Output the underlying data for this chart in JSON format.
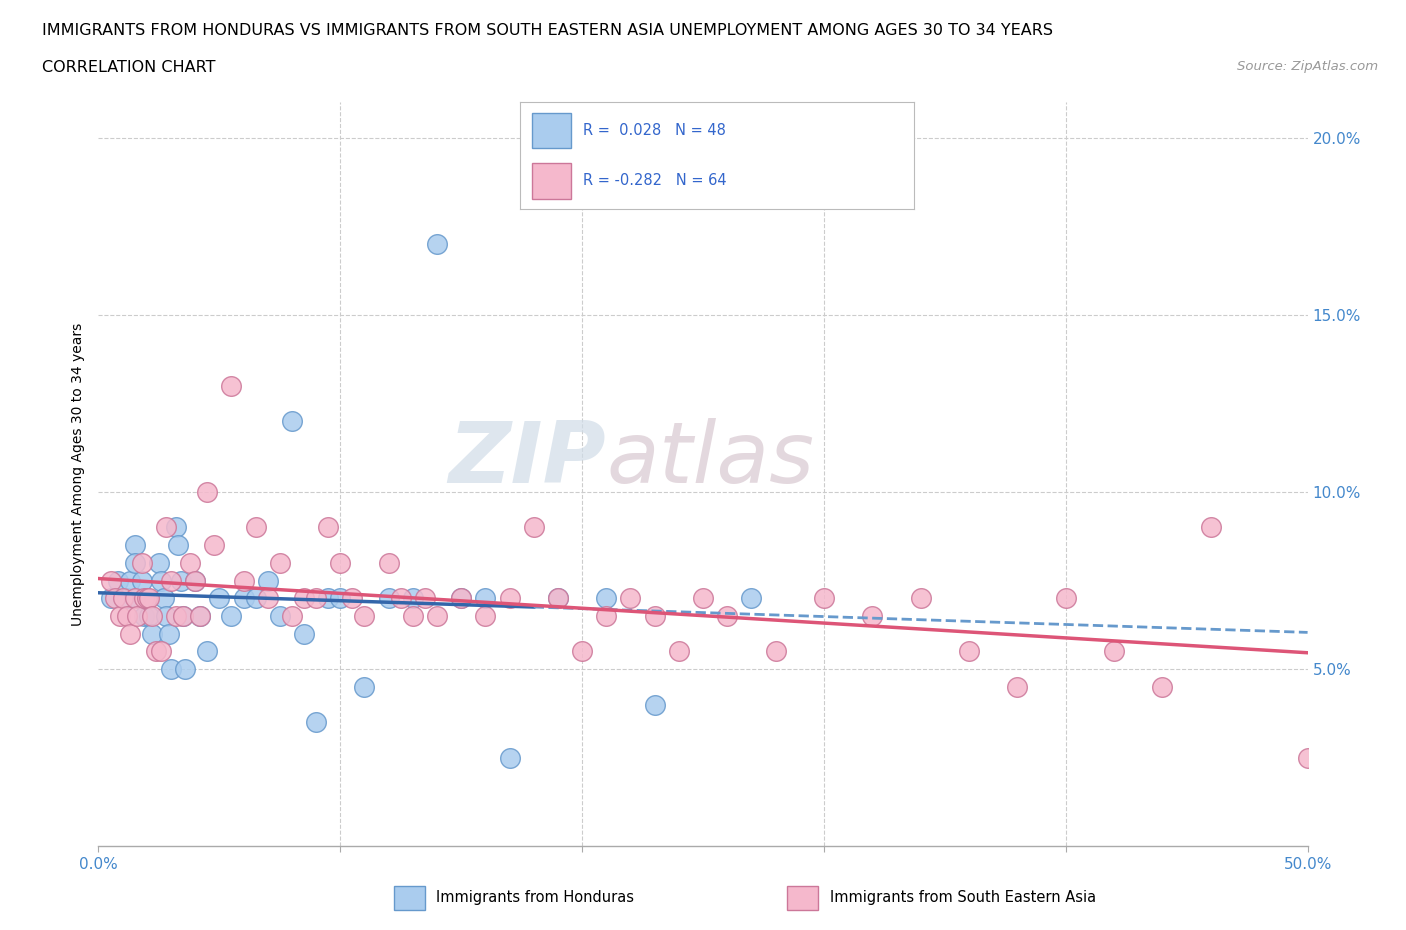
{
  "title_line1": "IMMIGRANTS FROM HONDURAS VS IMMIGRANTS FROM SOUTH EASTERN ASIA UNEMPLOYMENT AMONG AGES 30 TO 34 YEARS",
  "title_line2": "CORRELATION CHART",
  "source_text": "Source: ZipAtlas.com",
  "ylabel": "Unemployment Among Ages 30 to 34 years",
  "xlim": [
    0.0,
    0.5
  ],
  "ylim": [
    0.0,
    0.21
  ],
  "xticks": [
    0.0,
    0.1,
    0.2,
    0.3,
    0.4,
    0.5
  ],
  "xtick_labels_bottom": [
    "0.0%",
    "",
    "",
    "",
    "",
    "50.0%"
  ],
  "yticks": [
    0.05,
    0.1,
    0.15,
    0.2
  ],
  "ytick_labels_right": [
    "5.0%",
    "10.0%",
    "15.0%",
    "20.0%"
  ],
  "honduras_color": "#aaccee",
  "sea_color": "#f5b8cc",
  "trend_blue_solid": "#3366aa",
  "trend_blue_dashed": "#6699cc",
  "trend_pink": "#dd5577",
  "R_honduras": "0.028",
  "N_honduras": "48",
  "R_sea": "-0.282",
  "N_sea": "64",
  "watermark_zip": "ZIP",
  "watermark_atlas": "atlas",
  "legend_label_1": "Immigrants from Honduras",
  "legend_label_2": "Immigrants from South Eastern Asia",
  "honduras_x": [
    0.005,
    0.008,
    0.012,
    0.013,
    0.015,
    0.015,
    0.016,
    0.018,
    0.019,
    0.02,
    0.021,
    0.022,
    0.025,
    0.026,
    0.027,
    0.028,
    0.029,
    0.03,
    0.032,
    0.033,
    0.034,
    0.035,
    0.036,
    0.04,
    0.042,
    0.045,
    0.05,
    0.055,
    0.06,
    0.065,
    0.07,
    0.075,
    0.08,
    0.085,
    0.09,
    0.095,
    0.1,
    0.11,
    0.12,
    0.13,
    0.14,
    0.15,
    0.16,
    0.17,
    0.19,
    0.21,
    0.23,
    0.27
  ],
  "honduras_y": [
    0.07,
    0.075,
    0.07,
    0.075,
    0.085,
    0.08,
    0.07,
    0.075,
    0.065,
    0.07,
    0.065,
    0.06,
    0.08,
    0.075,
    0.07,
    0.065,
    0.06,
    0.05,
    0.09,
    0.085,
    0.075,
    0.065,
    0.05,
    0.075,
    0.065,
    0.055,
    0.07,
    0.065,
    0.07,
    0.07,
    0.075,
    0.065,
    0.12,
    0.06,
    0.035,
    0.07,
    0.07,
    0.045,
    0.07,
    0.07,
    0.17,
    0.07,
    0.07,
    0.025,
    0.07,
    0.07,
    0.04,
    0.07
  ],
  "sea_x": [
    0.005,
    0.007,
    0.009,
    0.01,
    0.012,
    0.013,
    0.015,
    0.016,
    0.018,
    0.019,
    0.02,
    0.021,
    0.022,
    0.024,
    0.026,
    0.028,
    0.03,
    0.032,
    0.035,
    0.038,
    0.04,
    0.042,
    0.045,
    0.048,
    0.055,
    0.06,
    0.065,
    0.07,
    0.075,
    0.08,
    0.085,
    0.09,
    0.095,
    0.1,
    0.105,
    0.11,
    0.12,
    0.125,
    0.13,
    0.135,
    0.14,
    0.15,
    0.16,
    0.17,
    0.18,
    0.19,
    0.2,
    0.21,
    0.22,
    0.23,
    0.24,
    0.25,
    0.26,
    0.28,
    0.3,
    0.32,
    0.34,
    0.36,
    0.38,
    0.4,
    0.42,
    0.44,
    0.46,
    0.5
  ],
  "sea_y": [
    0.075,
    0.07,
    0.065,
    0.07,
    0.065,
    0.06,
    0.07,
    0.065,
    0.08,
    0.07,
    0.07,
    0.07,
    0.065,
    0.055,
    0.055,
    0.09,
    0.075,
    0.065,
    0.065,
    0.08,
    0.075,
    0.065,
    0.1,
    0.085,
    0.13,
    0.075,
    0.09,
    0.07,
    0.08,
    0.065,
    0.07,
    0.07,
    0.09,
    0.08,
    0.07,
    0.065,
    0.08,
    0.07,
    0.065,
    0.07,
    0.065,
    0.07,
    0.065,
    0.07,
    0.09,
    0.07,
    0.055,
    0.065,
    0.07,
    0.065,
    0.055,
    0.07,
    0.065,
    0.055,
    0.07,
    0.065,
    0.07,
    0.055,
    0.045,
    0.07,
    0.055,
    0.045,
    0.09,
    0.025
  ]
}
